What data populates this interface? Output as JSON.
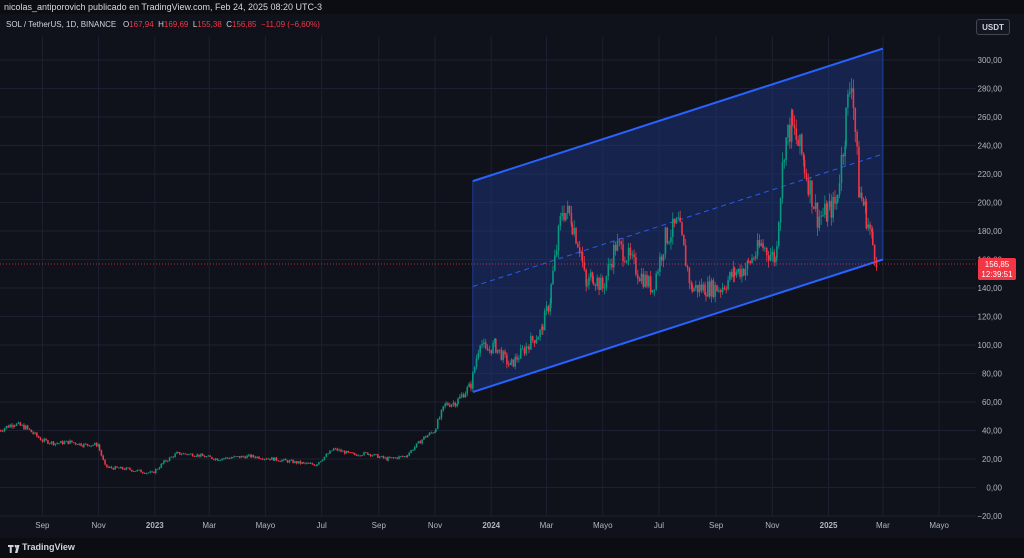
{
  "header": {
    "published": "nicolas_antiporovich publicado en TradingView.com, Feb 24, 2025 08:20 UTC-3"
  },
  "legend": {
    "symbol": "SOL / TetherUS, 1D, BINANCE",
    "open_label": "O",
    "open": "167,94",
    "high_label": "H",
    "high": "169,69",
    "low_label": "L",
    "low": "155,38",
    "close_label": "C",
    "close": "156,85",
    "change": "−11,09 (−6,60%)"
  },
  "currency_button": "USDT",
  "footer": {
    "brand": "TradingView"
  },
  "colors": {
    "background": "#0f121b",
    "up": "#089981",
    "down": "#f23645",
    "channel_line": "#2962ff",
    "channel_fill": "#1e3a8a",
    "price_line": "#f23645",
    "axis_text": "#b2b5be"
  },
  "chart_data": {
    "type": "candlestick",
    "y_axis": {
      "position": "right",
      "ticks": [
        "300,00",
        "280,00",
        "260,00",
        "240,00",
        "220,00",
        "200,00",
        "180,00",
        "160,00",
        "140,00",
        "120,00",
        "100,00",
        "80,00",
        "60,00",
        "40,00",
        "20,00",
        "0,00",
        "−20,00"
      ],
      "range": [
        -20,
        310
      ]
    },
    "x_axis": {
      "ticks": [
        "Sep",
        "Nov",
        "2023",
        "Mar",
        "Mayo",
        "Jul",
        "Sep",
        "Nov",
        "2024",
        "Mar",
        "Mayo",
        "Jul",
        "Sep",
        "Nov",
        "2025",
        "Mar",
        "Mayo"
      ],
      "bold_ticks": [
        "2023",
        "2024",
        "2025"
      ],
      "range": [
        "2022-07-17",
        "2025-06-10"
      ]
    },
    "grid": true,
    "last_price": {
      "value": 156.85,
      "label": "156,85",
      "countdown": "12:39:51"
    },
    "channel": {
      "lower": [
        [
          "2023-12-12",
          67
        ],
        [
          "2025-03-01",
          160
        ]
      ],
      "upper": [
        [
          "2023-12-12",
          215
        ],
        [
          "2025-03-01",
          308
        ]
      ],
      "mid_dashed": true
    },
    "series": [
      {
        "name": "SOL / TetherUS",
        "x": [
          "2022-07-17",
          "2022-08-01",
          "2022-08-14",
          "2022-09-01",
          "2022-09-15",
          "2022-10-01",
          "2022-10-15",
          "2022-11-01",
          "2022-11-08",
          "2022-11-12",
          "2022-12-01",
          "2022-12-29",
          "2023-01-10",
          "2023-01-25",
          "2023-02-15",
          "2023-03-10",
          "2023-03-25",
          "2023-04-15",
          "2023-05-10",
          "2023-06-10",
          "2023-06-25",
          "2023-07-14",
          "2023-08-05",
          "2023-08-20",
          "2023-09-10",
          "2023-10-01",
          "2023-10-20",
          "2023-11-01",
          "2023-11-12",
          "2023-11-25",
          "2023-12-10",
          "2023-12-20",
          "2023-12-26",
          "2024-01-05",
          "2024-01-22",
          "2024-02-10",
          "2024-02-25",
          "2024-03-05",
          "2024-03-18",
          "2024-03-28",
          "2024-04-08",
          "2024-04-13",
          "2024-04-20",
          "2024-05-01",
          "2024-05-15",
          "2024-05-25",
          "2024-06-10",
          "2024-06-24",
          "2024-07-08",
          "2024-07-22",
          "2024-08-05",
          "2024-08-20",
          "2024-09-06",
          "2024-09-20",
          "2024-10-05",
          "2024-10-20",
          "2024-11-05",
          "2024-11-14",
          "2024-11-22",
          "2024-12-05",
          "2024-12-20",
          "2024-12-30",
          "2025-01-10",
          "2025-01-19",
          "2025-01-26",
          "2025-02-03",
          "2025-02-10",
          "2025-02-17",
          "2025-02-24"
        ],
        "close": [
          40,
          45,
          42,
          33,
          31,
          32,
          30,
          30,
          15,
          14,
          13,
          10,
          17,
          24,
          23,
          20,
          21,
          22,
          20,
          17,
          16,
          27,
          23,
          24,
          20,
          22,
          35,
          40,
          58,
          60,
          72,
          104,
          95,
          100,
          85,
          100,
          110,
          132,
          195,
          190,
          165,
          140,
          150,
          140,
          170,
          165,
          150,
          140,
          175,
          185,
          140,
          140,
          140,
          150,
          155,
          170,
          160,
          240,
          255,
          230,
          190,
          192,
          200,
          250,
          290,
          210,
          195,
          175,
          157
        ]
      }
    ]
  }
}
